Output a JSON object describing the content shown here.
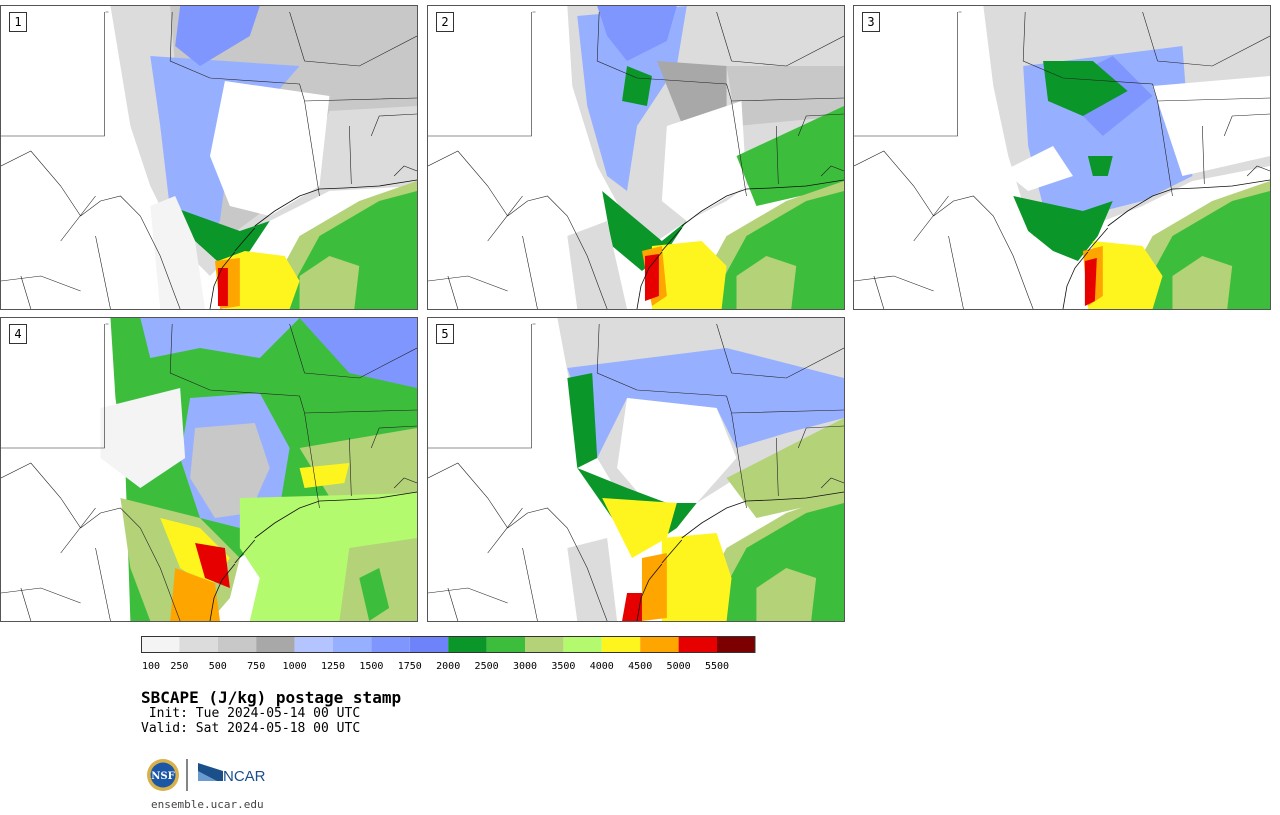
{
  "title": "SBCAPE (J/kg) postage stamp",
  "init_text": " Init: Tue 2024-05-14 00 UTC",
  "valid_text": "Valid: Sat 2024-05-18 00 UTC",
  "url": "ensemble.ucar.edu",
  "logos": {
    "nsf": "NSF",
    "ncar": "NCAR"
  },
  "members": [
    {
      "label": "1",
      "variant": 0
    },
    {
      "label": "2",
      "variant": 1
    },
    {
      "label": "3",
      "variant": 2
    },
    {
      "label": "4",
      "variant": 3
    },
    {
      "label": "5",
      "variant": 4
    }
  ],
  "colorbar": {
    "ticks": [
      "100",
      "250",
      "500",
      "750",
      "1000",
      "1250",
      "1500",
      "1750",
      "2000",
      "2500",
      "3000",
      "3500",
      "4000",
      "4500",
      "5000",
      "5500"
    ],
    "colors": [
      "#f4f4f4",
      "#dcdcdc",
      "#c8c8c8",
      "#a8a8a8",
      "#b4c4ff",
      "#96b0ff",
      "#8096ff",
      "#6e82fa",
      "#0a9628",
      "#3cbe3c",
      "#b4d278",
      "#b4fa6e",
      "#fff51e",
      "#ffa500",
      "#e60000",
      "#7d0000"
    ]
  }
}
